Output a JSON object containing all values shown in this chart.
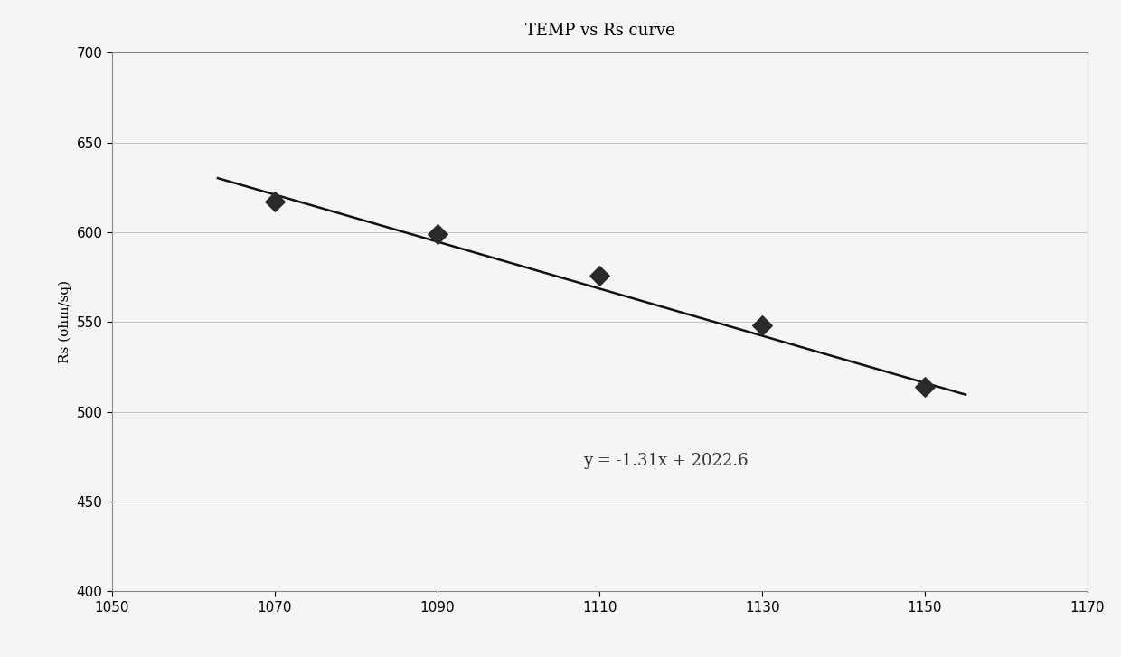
{
  "title": "TEMP vs Rs curve",
  "xlabel": "",
  "ylabel": "Rs (ohm/sq)",
  "x_data": [
    1070,
    1090,
    1110,
    1130,
    1150
  ],
  "y_data": [
    617,
    599,
    576,
    548,
    514
  ],
  "xlim": [
    1050,
    1170
  ],
  "ylim": [
    400,
    700
  ],
  "xticks": [
    1050,
    1070,
    1090,
    1110,
    1130,
    1150,
    1170
  ],
  "yticks": [
    400,
    450,
    500,
    550,
    600,
    650,
    700
  ],
  "slope": -1.31,
  "intercept": 2022.6,
  "equation": "y = -1.31x + 2022.6",
  "eq_x": 1108,
  "eq_y": 470,
  "line_x_start": 1063,
  "line_x_end": 1155,
  "line_color": "#111111",
  "marker_color": "#2a2a2a",
  "grid_color": "#bbbbbb",
  "background_color": "#f5f5f5",
  "plot_bg_color": "#f5f5f5",
  "spine_color": "#888888",
  "title_fontsize": 13,
  "label_fontsize": 11,
  "tick_fontsize": 11,
  "eq_fontsize": 13,
  "marker_size": 11,
  "line_width": 1.8
}
